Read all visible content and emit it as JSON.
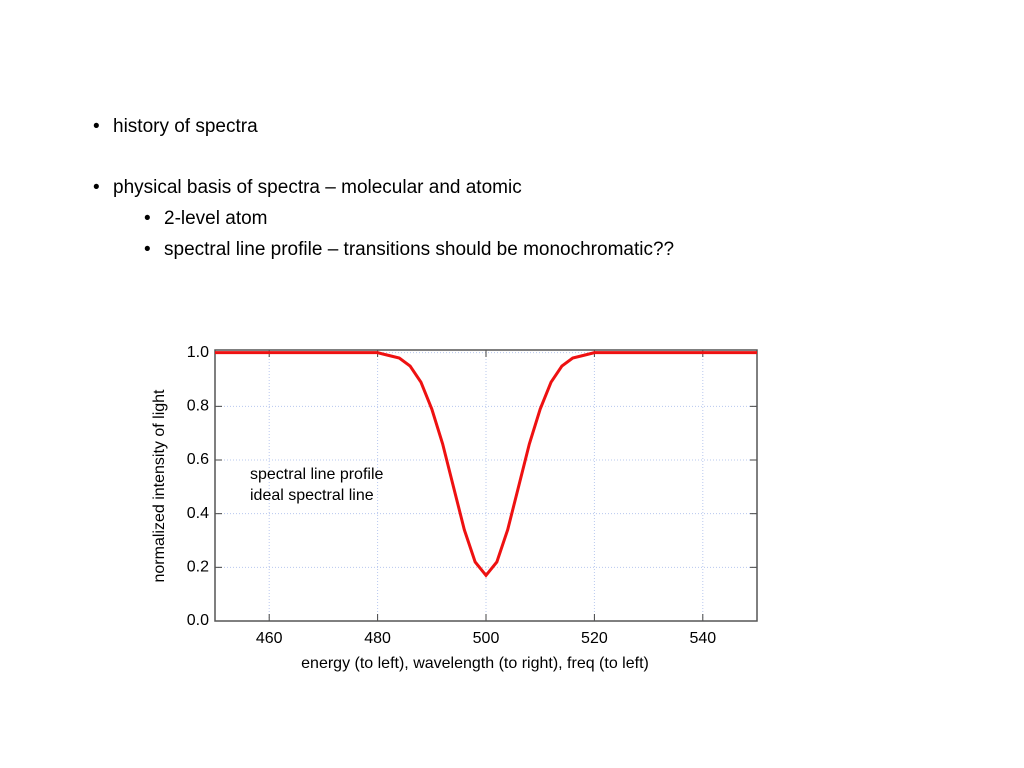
{
  "bullets": [
    "history of spectra",
    "physical basis of spectra – molecular and atomic",
    "2-level atom",
    "spectral line profile – transitions should be monochromatic??"
  ],
  "chart_data": {
    "type": "line",
    "xlabel": "energy (to left), wavelength (to right), freq (to left)",
    "ylabel": "normalized intensity of light",
    "legend_labels": [
      "spectral line profile",
      "ideal spectral line"
    ],
    "x": [
      450,
      476,
      480,
      482,
      484,
      486,
      488,
      490,
      492,
      494,
      496,
      498,
      500,
      502,
      504,
      506,
      508,
      510,
      512,
      514,
      516,
      518,
      520,
      524,
      550
    ],
    "series": [
      {
        "name": "spectral line profile",
        "color": "#ee1111",
        "values": [
          1.0,
          1.0,
          1.0,
          0.99,
          0.98,
          0.95,
          0.89,
          0.79,
          0.66,
          0.5,
          0.34,
          0.22,
          0.17,
          0.22,
          0.34,
          0.5,
          0.66,
          0.79,
          0.89,
          0.95,
          0.98,
          0.99,
          1.0,
          1.0,
          1.0
        ]
      }
    ],
    "xlim": [
      450,
      550
    ],
    "ylim": [
      0,
      1.01
    ],
    "xticks": [
      460,
      480,
      500,
      520,
      540
    ],
    "yticks": [
      {
        "value": 0,
        "label": "0.0"
      },
      0.2,
      0.4,
      0.6,
      0.8,
      {
        "value": 1,
        "label": "1.0"
      }
    ],
    "grid": true
  }
}
